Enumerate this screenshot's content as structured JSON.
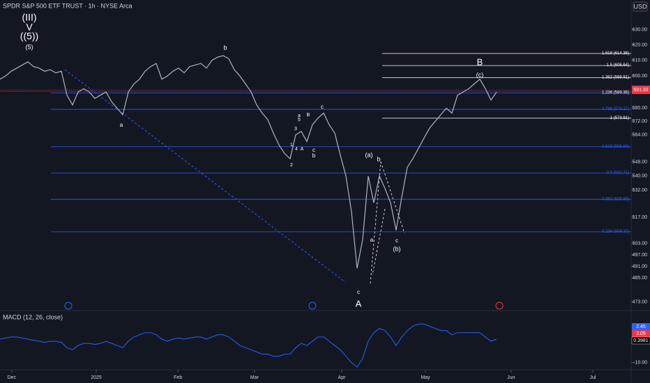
{
  "chart_data": {
    "type": "line",
    "title": "SPDR S&P 500 ETF TRUST · 1h · NYSE Arca",
    "currency": "USD",
    "color": "#aeb4c2",
    "log_scale": true,
    "values": [
      598,
      600,
      603,
      605,
      607,
      609,
      606,
      605,
      603,
      604,
      602,
      603,
      588,
      582,
      590,
      592,
      590,
      586,
      588,
      590,
      584,
      580,
      576,
      590,
      595,
      598,
      603,
      606,
      608,
      598,
      600,
      603,
      605,
      602,
      606,
      607,
      608,
      605,
      610,
      612,
      613,
      611,
      604,
      600,
      595,
      590,
      582,
      577,
      573,
      565,
      558,
      553,
      550,
      564,
      566,
      560,
      570,
      574,
      577,
      570,
      565,
      552,
      540,
      520,
      490,
      505,
      540,
      525,
      540,
      533,
      525,
      510,
      528,
      545,
      550,
      556,
      562,
      568,
      572,
      576,
      580,
      577,
      588,
      590,
      592,
      595,
      598,
      592,
      585,
      590
    ],
    "xlim": [
      0,
      113.125
    ],
    "xticks": [
      {
        "value": 2.1,
        "label": "Dec"
      },
      {
        "value": 17.25,
        "label": "2025"
      },
      {
        "value": 31.9,
        "label": "Feb"
      },
      {
        "value": 45.6,
        "label": "Mar"
      },
      {
        "value": 61.25,
        "label": "Apr"
      },
      {
        "value": 76.25,
        "label": "May"
      },
      {
        "value": 91.6,
        "label": "Jun"
      },
      {
        "value": 106.25,
        "label": "Jul"
      }
    ],
    "ylim": [
      469,
      650
    ],
    "yticks": [
      {
        "value": 630,
        "label": "630.00"
      },
      {
        "value": 620,
        "label": "620.00"
      },
      {
        "value": 610,
        "label": "610.00"
      },
      {
        "value": 600,
        "label": "600.00"
      },
      {
        "value": 580,
        "label": "580.00"
      },
      {
        "value": 572,
        "label": "572.00"
      },
      {
        "value": 564,
        "label": "564.00"
      },
      {
        "value": 548,
        "label": "548.00"
      },
      {
        "value": 540,
        "label": "540.00"
      },
      {
        "value": 532,
        "label": "532.00"
      },
      {
        "value": 517,
        "label": "517.00"
      },
      {
        "value": 503,
        "label": "503.00"
      },
      {
        "value": 497,
        "label": "497.00"
      },
      {
        "value": 491,
        "label": "491.00"
      },
      {
        "value": 485,
        "label": "485.00"
      },
      {
        "value": 473,
        "label": "473.00"
      }
    ],
    "last_price": {
      "value": 591.33,
      "label": "591.33"
    },
    "fib_levels": [
      {
        "value": 509.2,
        "label": "0.236 (509.20)",
        "color": "#2962ff"
      },
      {
        "value": 526.93,
        "label": "0.382 (526.93)",
        "color": "#2962ff"
      },
      {
        "value": 541.71,
        "label": "0.5 (541.71)",
        "color": "#2962ff"
      },
      {
        "value": 556.9,
        "label": "0.618 (556.90)",
        "color": "#2962ff"
      },
      {
        "value": 579.27,
        "label": "0.786 (579.27)",
        "color": "#2962ff"
      },
      {
        "value": 589.36,
        "label": "1.236 (589.36)",
        "color": "#2962ff"
      },
      {
        "value": 573.91,
        "label": "1 (573.91)",
        "color": "#ffffff"
      },
      {
        "value": 598.91,
        "label": "1.382 (598.91)",
        "color": "#ffffff"
      },
      {
        "value": 606.64,
        "label": "1.5 (606.64)",
        "color": "#ffffff"
      },
      {
        "value": 614.36,
        "label": "1.618 (614.36)",
        "color": "#ffffff"
      }
    ],
    "wave_labels": [
      "(III)",
      "V",
      "((5))",
      "(5)",
      "b",
      "a",
      "a",
      "5",
      "B",
      "c",
      "3",
      "1",
      "4",
      "A",
      "2",
      "c",
      "b",
      "(a)",
      "b",
      "a",
      "c",
      "A",
      "c",
      "(b)",
      "B",
      "(c)"
    ],
    "macd": {
      "title": "MACD (12, 26, close)",
      "color": "#2962ff",
      "values": [
        1,
        1.5,
        2,
        2,
        1.5,
        1,
        0.5,
        0,
        -0.5,
        0,
        0,
        -0.5,
        -3,
        -4,
        -2,
        -1,
        -1,
        -1.5,
        -1,
        0,
        -1,
        -2,
        -3,
        0,
        2,
        3,
        4,
        4,
        3,
        1,
        0,
        1,
        1.5,
        1,
        1.5,
        2,
        2,
        1,
        2,
        3,
        3,
        2,
        0,
        -2,
        -3,
        -4,
        -5,
        -6,
        -6,
        -7,
        -7,
        -6,
        -6,
        -3,
        -1,
        -2,
        0,
        2,
        2,
        0,
        -2,
        -4,
        -7,
        -10,
        -12,
        -8,
        0,
        4,
        6,
        5,
        2,
        -2,
        2,
        5,
        7,
        8,
        8,
        7,
        6,
        5,
        5,
        3,
        4,
        4,
        4,
        4,
        4,
        2,
        0,
        1
      ],
      "ylim": [
        -13,
        14
      ],
      "yticks": [
        {
          "value": -10,
          "label": "-10.00"
        }
      ],
      "last_values": [
        2.45,
        2.05,
        0.3981
      ]
    }
  }
}
